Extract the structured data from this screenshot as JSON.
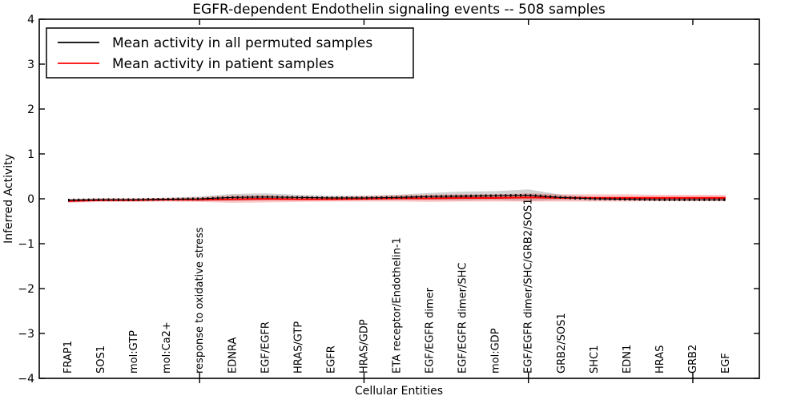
{
  "title": "EGFR-dependent Endothelin signaling events -- 508 samples",
  "axes": {
    "xlabel": "Cellular Entities",
    "ylabel": "Inferred Activity",
    "yticks": [
      4,
      3,
      2,
      1,
      0,
      -1,
      -2,
      -3,
      -4
    ],
    "ylim": [
      -4,
      4
    ]
  },
  "legend": {
    "entries": [
      {
        "label": "Mean activity in all permuted samples",
        "color": "#000000"
      },
      {
        "label": "Mean activity in patient samples",
        "color": "#ff0000"
      }
    ]
  },
  "chart_data": {
    "type": "line",
    "title": "EGFR-dependent Endothelin signaling events -- 508 samples",
    "xlabel": "Cellular Entities",
    "ylabel": "Inferred Activity",
    "ylim": [
      -4,
      4
    ],
    "grid": false,
    "legend_position": "upper left",
    "categories": [
      "FRAP1",
      "SOS1",
      "mol:GTP",
      "mol:Ca2+",
      "response to oxidative stress",
      "EDNRA",
      "EGF/EGFR",
      "HRAS/GTP",
      "EGFR",
      "HRAS/GDP",
      "ETA receptor/Endothelin-1",
      "EGF/EGFR dimer",
      "EGF/EGFR dimer/SHC",
      "mol:GDP",
      "EGF/EGFR dimer/SHC/GRB2/SOS1",
      "GRB2/SOS1",
      "SHC1",
      "EDN1",
      "HRAS",
      "GRB2",
      "EGF"
    ],
    "series": [
      {
        "name": "Mean activity in all permuted samples",
        "color": "#000000",
        "band_color": "rgba(0,0,0,0.18)",
        "values": [
          -0.03,
          -0.02,
          -0.02,
          -0.01,
          0.0,
          0.03,
          0.04,
          0.03,
          0.02,
          0.02,
          0.03,
          0.05,
          0.06,
          0.07,
          0.08,
          0.03,
          0.0,
          -0.01,
          -0.02,
          -0.02,
          -0.02
        ],
        "std": [
          0.03,
          0.03,
          0.03,
          0.03,
          0.05,
          0.08,
          0.08,
          0.06,
          0.05,
          0.05,
          0.06,
          0.08,
          0.1,
          0.1,
          0.13,
          0.06,
          0.04,
          0.03,
          0.03,
          0.03,
          0.03
        ]
      },
      {
        "name": "Mean activity in patient samples",
        "color": "#ff0000",
        "band_color": "rgba(255,0,0,0.22)",
        "values": [
          -0.05,
          -0.03,
          -0.03,
          -0.02,
          -0.02,
          -0.01,
          0.0,
          -0.01,
          -0.01,
          0.0,
          0.01,
          0.01,
          0.02,
          0.02,
          0.03,
          0.02,
          0.02,
          0.02,
          0.02,
          0.02,
          0.02
        ],
        "std": [
          0.04,
          0.04,
          0.04,
          0.04,
          0.05,
          0.08,
          0.08,
          0.06,
          0.05,
          0.06,
          0.07,
          0.08,
          0.08,
          0.08,
          0.09,
          0.08,
          0.08,
          0.08,
          0.07,
          0.07,
          0.07
        ]
      }
    ]
  }
}
